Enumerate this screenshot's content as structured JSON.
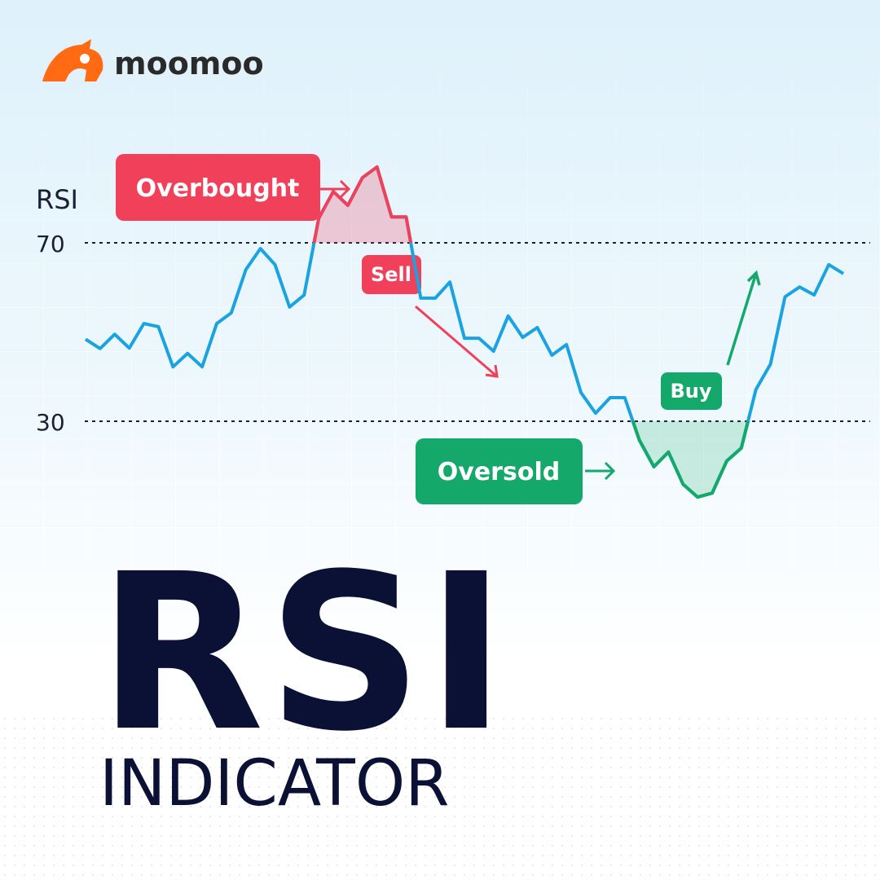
{
  "brand": "moomoo",
  "chart_data": {
    "type": "line",
    "ylabel": "RSI",
    "title": "RSI",
    "subtitle": "INDICATOR",
    "values": [
      48.4,
      46.3,
      49.5,
      46.4,
      51.9,
      51.2,
      42.2,
      45.2,
      42.2,
      51.9,
      54.3,
      64.0,
      68.7,
      65.1,
      55.6,
      58.3,
      75.5,
      81.5,
      78.4,
      84.6,
      87.0,
      75.8,
      75.8,
      57.6,
      57.6,
      61.2,
      48.6,
      48.6,
      45.7,
      53.6,
      48.8,
      51.0,
      44.8,
      47.2,
      36.4,
      31.8,
      35.3,
      35.3,
      25.8,
      19.8,
      23.1,
      15.9,
      13.0,
      13.9,
      21.1,
      24.0,
      37.1,
      42.8,
      57.9,
      60.1,
      58.3,
      65.1,
      63.1
    ],
    "color": "#1aa3e0",
    "overbought_color": "#f0405a",
    "oversold_color": "#14a86a",
    "ylim": [
      10,
      90
    ],
    "yticks": [
      30,
      70
    ],
    "grid": true,
    "annotations": [
      "Overbought",
      "Sell",
      "Oversold",
      "Buy"
    ]
  }
}
